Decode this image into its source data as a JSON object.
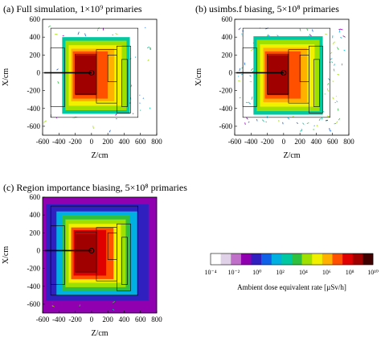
{
  "figure": {
    "colorbar": {
      "title": "Ambient dose equivalent rate [µSv/h]",
      "tick_labels": [
        "10⁻⁴",
        "10⁻²",
        "10⁰",
        "10²",
        "10⁴",
        "10⁶",
        "10⁸",
        "10¹⁰"
      ],
      "tick_values": [
        -4,
        -2,
        0,
        2,
        4,
        6,
        8,
        10
      ],
      "log_scale": true,
      "colors": [
        "#ffffff",
        "#e0d0e8",
        "#c070c8",
        "#9000b0",
        "#3020c0",
        "#1060e8",
        "#00b0e0",
        "#00c8a0",
        "#30c040",
        "#a0e000",
        "#f0f000",
        "#ffb000",
        "#ff5000",
        "#e00000",
        "#a00000",
        "#400000"
      ]
    }
  },
  "chart_data": [
    {
      "type": "heatmap",
      "panel": "a",
      "title": "(a) Full simulation, 1×10⁹ primaries",
      "xlabel": "Z/cm",
      "ylabel": "X/cm",
      "xlim": [
        -600,
        800
      ],
      "ylim": [
        -700,
        600
      ],
      "xticks": [
        -600,
        -400,
        -200,
        0,
        200,
        400,
        600,
        800
      ],
      "yticks": [
        -600,
        -400,
        -200,
        0,
        200,
        400,
        600
      ],
      "background_log_level": null,
      "streak_density": "medium",
      "hot_zones": [
        {
          "log_level": 2.5,
          "z": [
            -360,
            470
          ],
          "x": [
            -460,
            400
          ]
        },
        {
          "log_level": 4.0,
          "z": [
            -320,
            430
          ],
          "x": [
            -420,
            360
          ]
        },
        {
          "log_level": 5.0,
          "z": [
            -280,
            370
          ],
          "x": [
            -370,
            310
          ]
        },
        {
          "log_level": 6.0,
          "z": [
            -250,
            280
          ],
          "x": [
            -320,
            270
          ]
        },
        {
          "log_level": 7.0,
          "z": [
            -230,
            200
          ],
          "x": [
            -290,
            240
          ]
        },
        {
          "log_level": 8.5,
          "z": [
            -200,
            60
          ],
          "x": [
            -250,
            200
          ]
        }
      ]
    },
    {
      "type": "heatmap",
      "panel": "b",
      "title": "(b) usimbs.f biasing, 5×10⁸ primaries",
      "xlabel": "Z/cm",
      "ylabel": "X/cm",
      "xlim": [
        -600,
        800
      ],
      "ylim": [
        -700,
        600
      ],
      "xticks": [
        -600,
        -400,
        -200,
        0,
        200,
        400,
        600,
        800
      ],
      "yticks": [
        -600,
        -400,
        -200,
        0,
        200,
        400,
        600
      ],
      "background_log_level": null,
      "streak_density": "high",
      "hot_zones": [
        {
          "log_level": 2.5,
          "z": [
            -370,
            480
          ],
          "x": [
            -470,
            410
          ]
        },
        {
          "log_level": 4.0,
          "z": [
            -330,
            440
          ],
          "x": [
            -430,
            370
          ]
        },
        {
          "log_level": 5.0,
          "z": [
            -290,
            380
          ],
          "x": [
            -380,
            320
          ]
        },
        {
          "log_level": 6.0,
          "z": [
            -250,
            290
          ],
          "x": [
            -330,
            280
          ]
        },
        {
          "log_level": 7.0,
          "z": [
            -230,
            210
          ],
          "x": [
            -290,
            240
          ]
        },
        {
          "log_level": 8.5,
          "z": [
            -200,
            60
          ],
          "x": [
            -250,
            200
          ]
        }
      ]
    },
    {
      "type": "heatmap",
      "panel": "c",
      "title": "(c) Region importance biasing, 5×10⁸ primaries",
      "xlabel": "Z/cm",
      "ylabel": "X/cm",
      "xlim": [
        -600,
        800
      ],
      "ylim": [
        -700,
        600
      ],
      "xticks": [
        -600,
        -400,
        -200,
        0,
        200,
        400,
        600,
        800
      ],
      "yticks": [
        -600,
        -400,
        -200,
        0,
        200,
        400,
        600
      ],
      "background_log_level": -1.0,
      "streak_density": "low",
      "hot_zones": [
        {
          "log_level": 0.3,
          "z": [
            -560,
            700
          ],
          "x": [
            -560,
            520
          ]
        },
        {
          "log_level": 1.5,
          "z": [
            -430,
            560
          ],
          "x": [
            -500,
            440
          ]
        },
        {
          "log_level": 3.0,
          "z": [
            -360,
            470
          ],
          "x": [
            -450,
            400
          ]
        },
        {
          "log_level": 4.5,
          "z": [
            -320,
            420
          ],
          "x": [
            -410,
            350
          ]
        },
        {
          "log_level": 5.5,
          "z": [
            -280,
            360
          ],
          "x": [
            -360,
            300
          ]
        },
        {
          "log_level": 6.5,
          "z": [
            -250,
            270
          ],
          "x": [
            -320,
            260
          ]
        },
        {
          "log_level": 7.5,
          "z": [
            -220,
            180
          ],
          "x": [
            -280,
            230
          ]
        },
        {
          "log_level": 8.8,
          "z": [
            -200,
            60
          ],
          "x": [
            -240,
            190
          ]
        }
      ]
    }
  ]
}
